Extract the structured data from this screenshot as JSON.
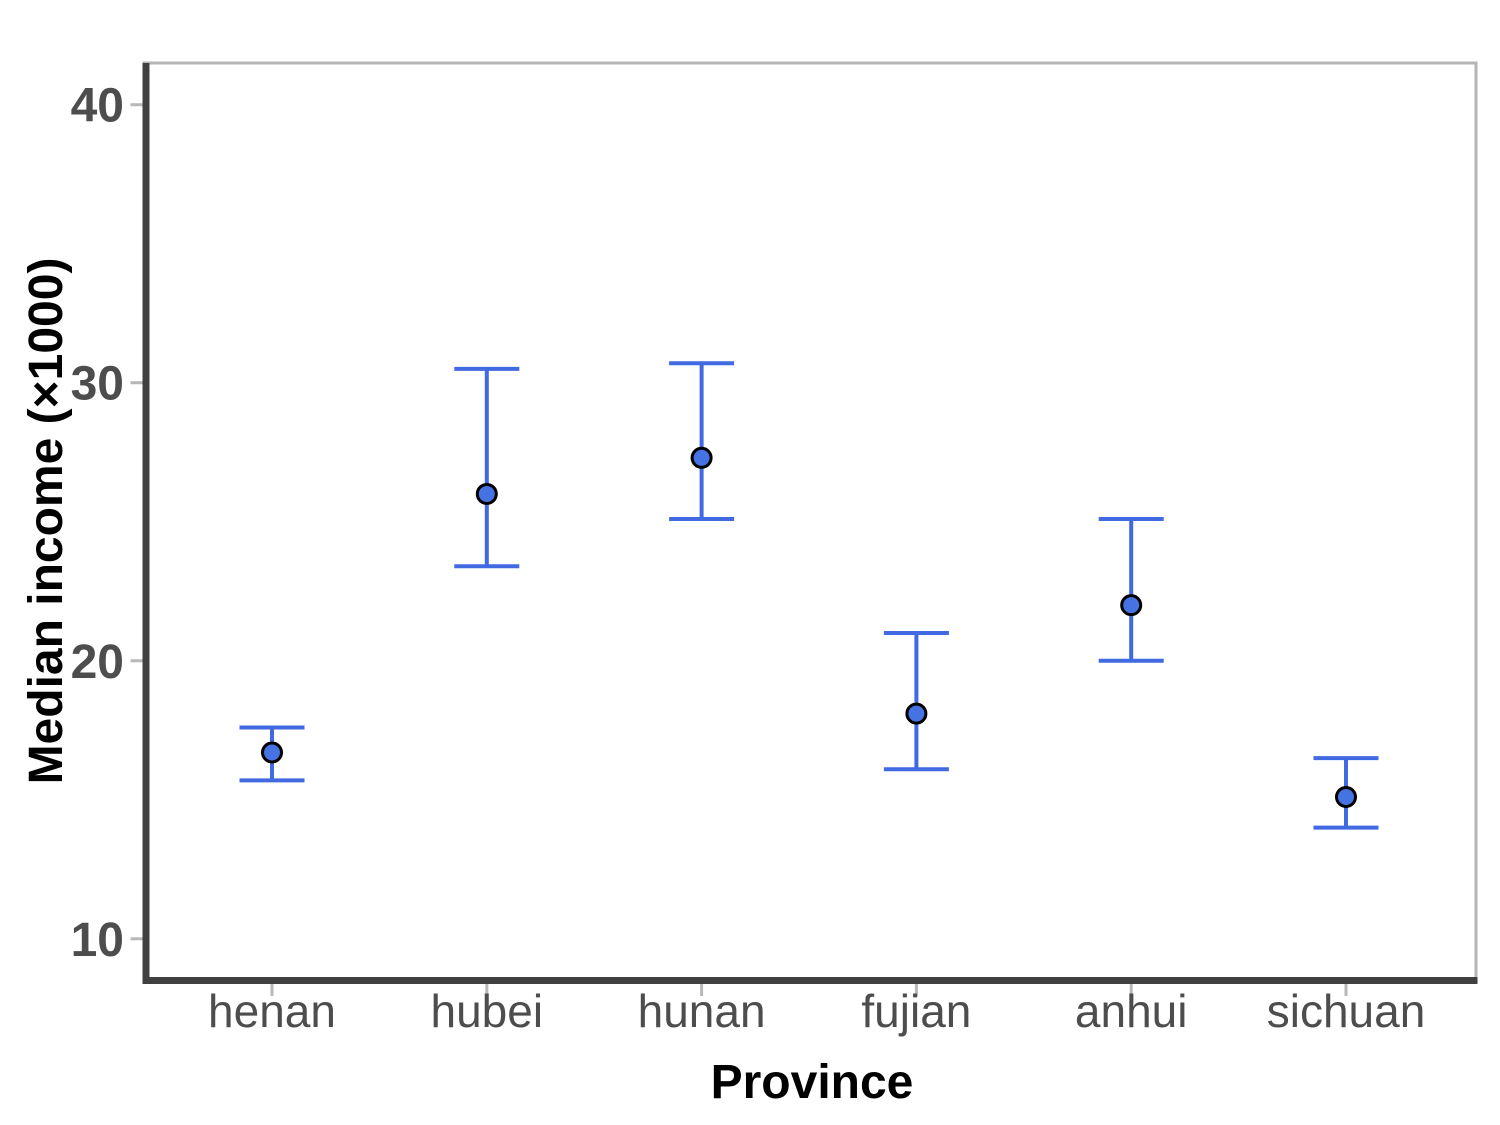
{
  "figure": {
    "background": "#ffffff"
  },
  "chart_data": {
    "type": "scatter",
    "title": "",
    "xlabel": "Province",
    "ylabel": "Median income (×1000)",
    "categories": [
      "henan",
      "hubei",
      "hunan",
      "fujian",
      "anhui",
      "sichuan"
    ],
    "series": [
      {
        "name": "median-income",
        "marker": "filled-circle",
        "values": [
          16.7,
          26.0,
          27.3,
          18.1,
          22.0,
          15.1
        ],
        "error_low": [
          15.7,
          23.4,
          25.1,
          16.1,
          20.0,
          14.0
        ],
        "error_high": [
          17.6,
          30.5,
          30.7,
          21.0,
          25.1,
          16.5
        ]
      }
    ],
    "yticks": [
      10,
      20,
      30,
      40
    ],
    "ylim": [
      8.5,
      41.5
    ],
    "grid": false,
    "legend": false,
    "error_bar_style": "vertical-line-with-caps"
  },
  "colors": {
    "error_bar": "#4169e1",
    "point_fill": "#4673e3",
    "point_stroke": "#000000",
    "axis_line": "#404040",
    "panel_border": "#b5b5b5",
    "tick_mark": "#b8b8b8",
    "tick_label": "#4d4d4d",
    "axis_title": "#000000"
  }
}
